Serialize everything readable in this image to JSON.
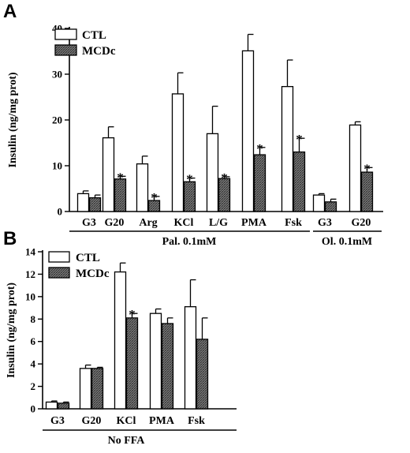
{
  "chart_data": [
    {
      "type": "bar",
      "panel": "A",
      "ylabel": "Insulin (ng/mg prot)",
      "ylim": [
        0,
        40
      ],
      "yticks": [
        0,
        10,
        20,
        30,
        40
      ],
      "legend_placement": "top-left",
      "colors": {
        "CTL": "#ffffff",
        "MCDc": "#555555"
      },
      "series": [
        {
          "name": "CTL",
          "style": "open"
        },
        {
          "name": "MCDc",
          "style": "hatched"
        }
      ],
      "groups": [
        {
          "label": "Pal. 0.1mM",
          "categories": [
            {
              "label": "G3",
              "CTL": 3.9,
              "CTL_err": 0.6,
              "MCDc": 3.0,
              "MCDc_err": 0.6,
              "sig": false
            },
            {
              "label": "G20",
              "CTL": 16.1,
              "CTL_err": 2.4,
              "MCDc": 7.1,
              "MCDc_err": 0.6,
              "sig": true
            },
            {
              "label": "Arg",
              "CTL": 10.4,
              "CTL_err": 1.7,
              "MCDc": 2.4,
              "MCDc_err": 0.9,
              "sig": true
            },
            {
              "label": "KCl",
              "CTL": 25.7,
              "CTL_err": 4.6,
              "MCDc": 6.5,
              "MCDc_err": 0.8,
              "sig": true
            },
            {
              "label": "L/G",
              "CTL": 17.0,
              "CTL_err": 6.0,
              "MCDc": 7.2,
              "MCDc_err": 0.4,
              "sig": true
            },
            {
              "label": "PMA",
              "CTL": 35.1,
              "CTL_err": 3.6,
              "MCDc": 12.4,
              "MCDc_err": 1.6,
              "sig": true
            },
            {
              "label": "Fsk",
              "CTL": 27.3,
              "CTL_err": 5.8,
              "MCDc": 13.0,
              "MCDc_err": 3.0,
              "sig": true
            }
          ]
        },
        {
          "label": "Ol. 0.1mM",
          "categories": [
            {
              "label": "G3",
              "CTL": 3.6,
              "CTL_err": 0.3,
              "MCDc": 2.1,
              "MCDc_err": 0.6,
              "sig": false
            },
            {
              "label": "G20",
              "CTL": 18.9,
              "CTL_err": 0.7,
              "MCDc": 8.6,
              "MCDc_err": 1.0,
              "sig": true
            }
          ]
        }
      ]
    },
    {
      "type": "bar",
      "panel": "B",
      "ylabel": "Insulin (ng/mg prot)",
      "ylim": [
        0,
        14
      ],
      "yticks": [
        0,
        2,
        4,
        6,
        8,
        10,
        12,
        14
      ],
      "legend_placement": "top-left",
      "colors": {
        "CTL": "#ffffff",
        "MCDc": "#555555"
      },
      "series": [
        {
          "name": "CTL",
          "style": "open"
        },
        {
          "name": "MCDc",
          "style": "hatched"
        }
      ],
      "groups": [
        {
          "label": "No FFA",
          "categories": [
            {
              "label": "G3",
              "CTL": 0.6,
              "CTL_err": 0.1,
              "MCDc": 0.5,
              "MCDc_err": 0.1,
              "sig": false
            },
            {
              "label": "G20",
              "CTL": 3.6,
              "CTL_err": 0.3,
              "MCDc": 3.6,
              "MCDc_err": 0.1,
              "sig": false
            },
            {
              "label": "KCl",
              "CTL": 12.2,
              "CTL_err": 0.8,
              "MCDc": 8.1,
              "MCDc_err": 0.4,
              "sig": true
            },
            {
              "label": "PMA",
              "CTL": 8.5,
              "CTL_err": 0.4,
              "MCDc": 7.6,
              "MCDc_err": 0.5,
              "sig": false
            },
            {
              "label": "Fsk",
              "CTL": 9.1,
              "CTL_err": 2.4,
              "MCDc": 6.2,
              "MCDc_err": 1.9,
              "sig": false
            }
          ]
        }
      ]
    }
  ],
  "sig_marker": "*"
}
